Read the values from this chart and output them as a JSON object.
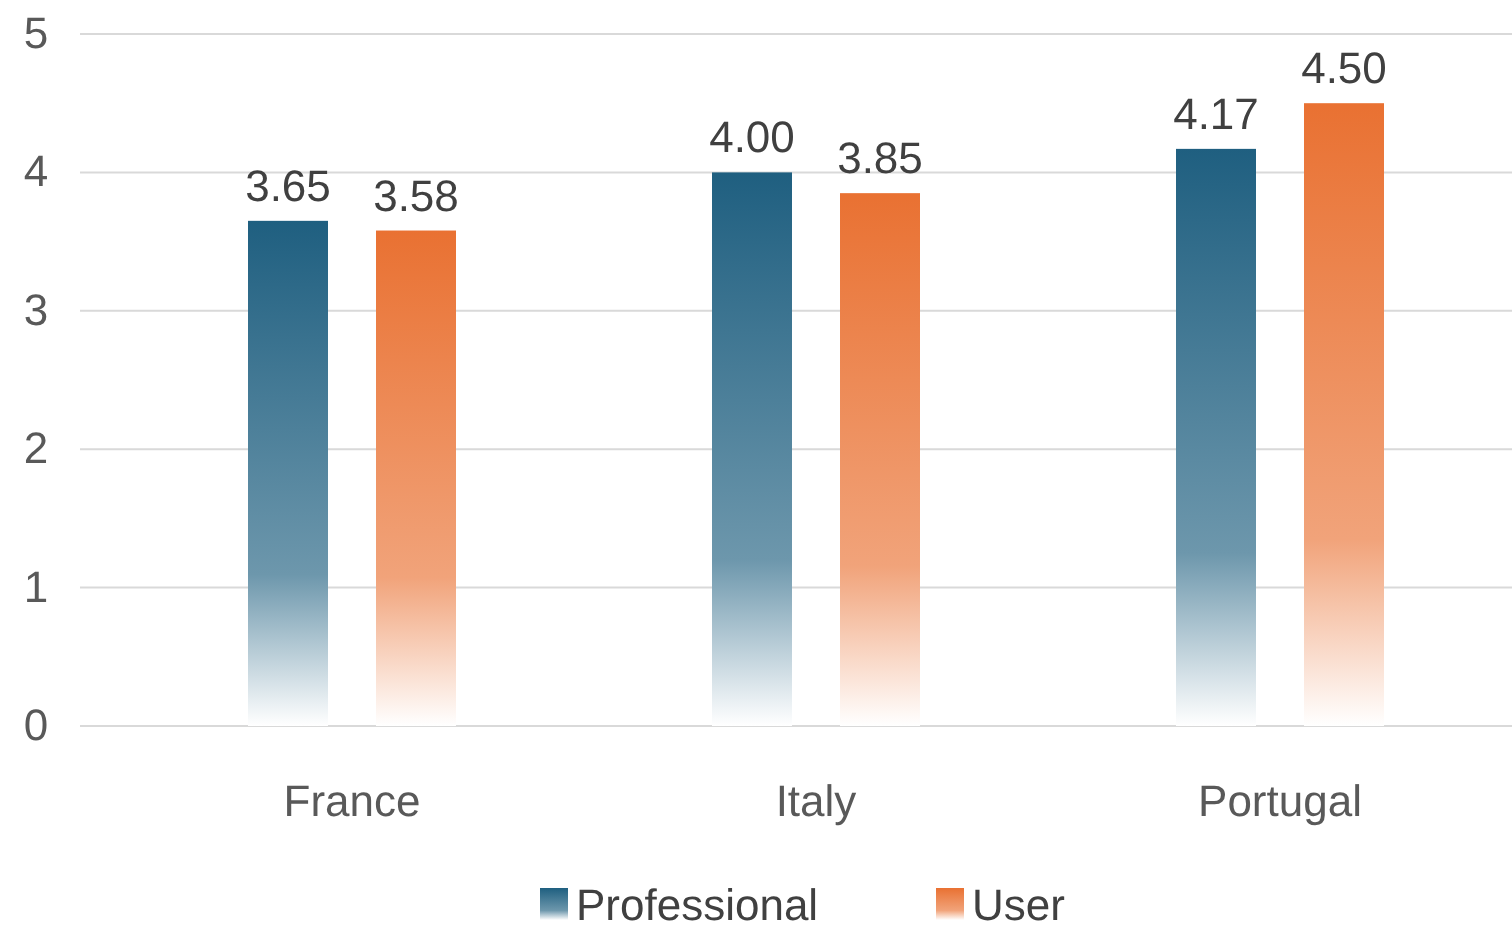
{
  "chart_data": {
    "type": "bar",
    "categories": [
      "France",
      "Italy",
      "Portugal"
    ],
    "series": [
      {
        "name": "Professional",
        "color": "#1f5f80",
        "values": [
          3.65,
          4.0,
          4.17
        ],
        "value_labels": [
          "3.65",
          "4.00",
          "4.17"
        ]
      },
      {
        "name": "User",
        "color": "#e97132",
        "values": [
          3.58,
          3.85,
          4.5
        ],
        "value_labels": [
          "3.58",
          "3.85",
          "4.50"
        ]
      }
    ],
    "ylim": [
      0,
      5
    ],
    "yticks": [
      0,
      1,
      2,
      3,
      4,
      5
    ],
    "grid": "y",
    "legend": "bottom"
  }
}
